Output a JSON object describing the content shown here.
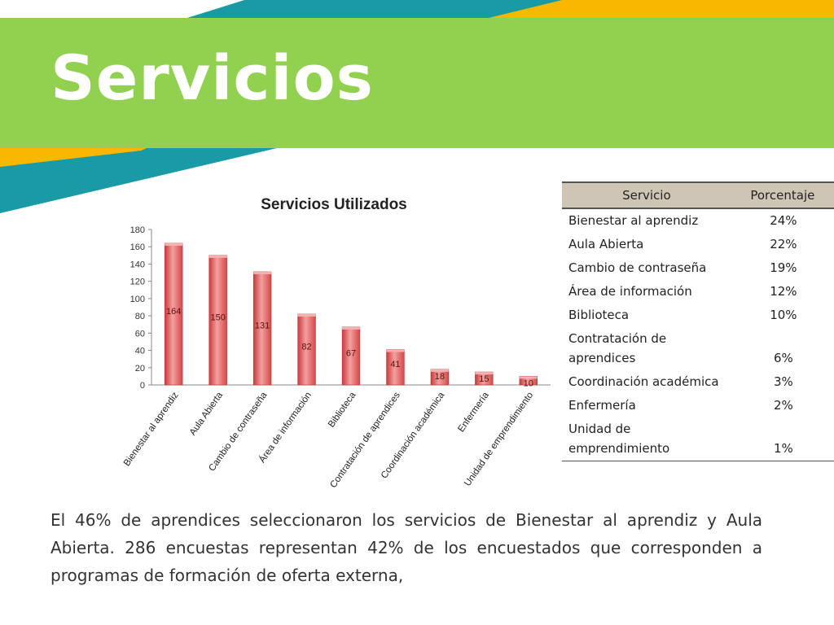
{
  "header": {
    "title": "Servicios"
  },
  "colors": {
    "green": "#92d050",
    "teal": "#1a9aa5",
    "yellow": "#f8b800",
    "bar": "#e05a5a",
    "bar_light": "#f3a0a0"
  },
  "chart_data": {
    "type": "bar",
    "title": "Servicios Utilizados",
    "categories": [
      "Bienestar al aprendiz",
      "Aula Abierta",
      "Cambio de contraseña",
      "Área de información",
      "Biblioteca",
      "Contratación de aprendices",
      "Coordinación académica",
      "Enfermería",
      "Unidad de emprendimiento"
    ],
    "values": [
      164,
      150,
      131,
      82,
      67,
      41,
      18,
      15,
      10
    ],
    "ylim": [
      0,
      180
    ],
    "yticks": [
      0,
      20,
      40,
      60,
      80,
      100,
      120,
      140,
      160,
      180
    ],
    "data_labels": [
      "164",
      "150",
      "131",
      "82",
      "67",
      "41",
      "18",
      "15",
      "10"
    ],
    "grid": false,
    "legend": "none"
  },
  "table": {
    "headers": [
      "Servicio",
      "Porcentaje"
    ],
    "rows": [
      {
        "name": "Bienestar al aprendiz",
        "pct": "24%"
      },
      {
        "name": "Aula Abierta",
        "pct": "22%"
      },
      {
        "name": "Cambio de contraseña",
        "pct": "19%"
      },
      {
        "name": "Área de información",
        "pct": "12%"
      },
      {
        "name": "Biblioteca",
        "pct": "10%"
      },
      {
        "name": "Contratación de aprendices",
        "pct": "6%"
      },
      {
        "name": "Coordinación académica",
        "pct": "3%"
      },
      {
        "name": "Enfermería",
        "pct": "2%"
      },
      {
        "name": "Unidad de emprendimiento",
        "pct": "1%"
      }
    ]
  },
  "body_text": "El 46% de aprendices seleccionaron los servicios de Bienestar al aprendiz y Aula Abierta. 286 encuestas representan 42%  de los encuestados que corresponden a programas de formación de oferta externa,"
}
